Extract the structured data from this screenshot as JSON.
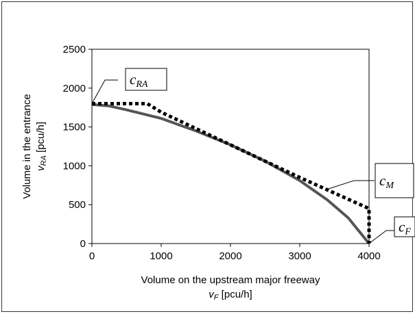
{
  "chart_data": {
    "type": "line",
    "xlabel_line1": "Volume on the upstream major freeway",
    "xlabel_line2_sym": "v",
    "xlabel_line2_sub": "F",
    "xlabel_line2_unit": " [pcu/h]",
    "ylabel_line1": "Volume in the entrance",
    "ylabel_line2_sym": "v",
    "ylabel_line2_sub": "RA",
    "ylabel_line2_unit": " [pcu/h]",
    "xlim": [
      0,
      4000
    ],
    "ylim": [
      0,
      2500
    ],
    "x_ticks": [
      "0",
      "1000",
      "2000",
      "3000",
      "4000"
    ],
    "y_ticks": [
      "0",
      "500",
      "1000",
      "1500",
      "2000",
      "2500"
    ],
    "grid": false,
    "series": [
      {
        "style": "solid",
        "color": "#555555",
        "x": [
          0,
          250,
          500,
          1000,
          1500,
          2000,
          2500,
          3000,
          3400,
          3700,
          3900,
          4000
        ],
        "y": [
          1790,
          1770,
          1720,
          1610,
          1450,
          1270,
          1060,
          810,
          560,
          330,
          110,
          0
        ]
      },
      {
        "style": "dotted",
        "color": "#000000",
        "x": [
          0,
          800,
          1000,
          1500,
          2000,
          2500,
          3000,
          3500,
          4000,
          4000
        ],
        "y": [
          1800,
          1800,
          1690,
          1480,
          1270,
          1060,
          850,
          650,
          450,
          0
        ]
      }
    ],
    "annotations": [
      {
        "main": "c",
        "sub": "RA"
      },
      {
        "main": "c",
        "sub": "M"
      },
      {
        "main": "c",
        "sub": "F"
      }
    ]
  }
}
